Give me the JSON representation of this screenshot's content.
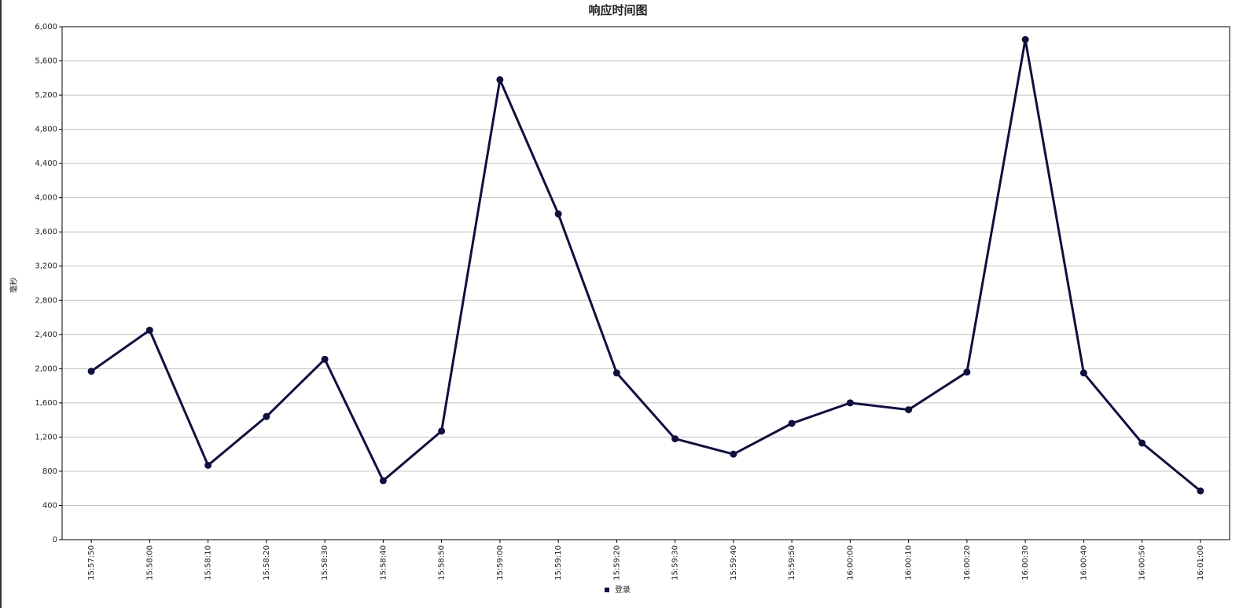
{
  "chart_data": {
    "type": "line",
    "title": "响应时间图",
    "y_label": "毫秒",
    "categories": [
      "15:57:50",
      "15:58:00",
      "15:58:10",
      "15:58:20",
      "15:58:30",
      "15:58:40",
      "15:58:50",
      "15:59:00",
      "15:59:10",
      "15:59:20",
      "15:59:30",
      "15:59:40",
      "15:59:50",
      "16:00:00",
      "16:00:10",
      "16:00:20",
      "16:00:30",
      "16:00:40",
      "16:00:50",
      "16:01:00"
    ],
    "series": [
      {
        "name": "登录",
        "color": "#10103f",
        "values": [
          1970,
          2450,
          870,
          1440,
          2110,
          690,
          1270,
          5380,
          3810,
          1950,
          1180,
          1000,
          1360,
          1600,
          1520,
          1960,
          5850,
          1950,
          1130,
          570
        ]
      }
    ],
    "ylim": [
      0,
      6000
    ],
    "yticks": [
      0,
      400,
      800,
      {
        "value": 1200,
        "label": "1,200"
      },
      {
        "value": 1600,
        "label": "1,600"
      },
      {
        "value": 2000,
        "label": "2,000"
      },
      {
        "value": 2400,
        "label": "2,400"
      },
      {
        "value": 2800,
        "label": "2,800"
      },
      {
        "value": 3200,
        "label": "3,200"
      },
      {
        "value": 3600,
        "label": "3,600"
      },
      {
        "value": 4000,
        "label": "4,000"
      },
      {
        "value": 4400,
        "label": "4,400"
      },
      {
        "value": 4800,
        "label": "4,800"
      },
      {
        "value": 5200,
        "label": "5,200"
      },
      {
        "value": 5600,
        "label": "5,600"
      },
      {
        "value": 6000,
        "label": "6,000"
      }
    ],
    "grid": true,
    "legend": "bottom"
  }
}
